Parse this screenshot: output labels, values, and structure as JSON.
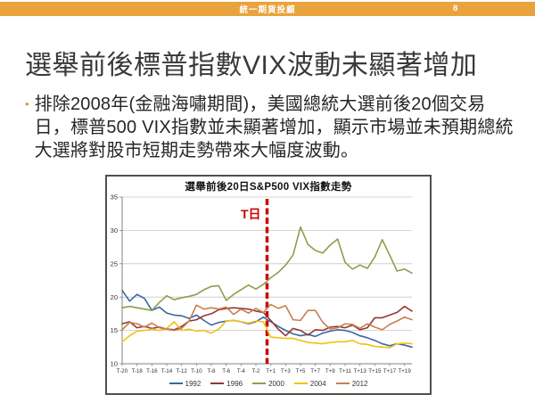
{
  "header": {
    "title": "統一期貨投顧",
    "page_number": "8",
    "bar_color": "#E9A33C"
  },
  "slide": {
    "title": "選舉前後標普指數VIX波動未顯著增加",
    "bullet_text": "排除2008年(金融海嘯期間)，美國總統大選前後20個交易日，標普500 VIX指數並未顯著增加，顯示市場並未預期總統大選將對股市短期走勢帶來大幅度波動。",
    "bullet_marker": "•",
    "accent_color": "#D09A42"
  },
  "chart_data": {
    "type": "line",
    "title": "選舉前後20日S&P500 VIX指數走勢",
    "ylim": [
      10,
      35
    ],
    "y_ticks": [
      10,
      15,
      20,
      25,
      30,
      35
    ],
    "grid": true,
    "legend_position": "bottom",
    "x_tick_labels": [
      "T-20",
      "T-18",
      "T-16",
      "T-14",
      "T-12",
      "T-10",
      "T-8",
      "T-6",
      "T-4",
      "T-2",
      "T+1",
      "T+3",
      "T+5",
      "T+7",
      "T+9",
      "T+11",
      "T+13",
      "T+15",
      "T+17",
      "T+19"
    ],
    "annotation": {
      "label": "T日",
      "color": "#CC0000",
      "description": "election-day dashed line between T-1 and T+1"
    },
    "axis_color": "#808080",
    "gridline_color": "#C8C8C8",
    "series": [
      {
        "name": "1992",
        "color": "#3A67A0",
        "values": [
          21.0,
          19.4,
          20.4,
          19.8,
          18.0,
          18.5,
          17.6,
          17.3,
          17.2,
          16.8,
          17.3,
          16.5,
          15.8,
          16.2,
          16.4,
          16.5,
          16.3,
          16.0,
          16.3,
          17.0,
          16.3,
          15.6,
          15.0,
          14.5,
          14.2,
          14.4,
          14.1,
          14.6,
          14.9,
          15.1,
          15.0,
          14.7,
          14.2,
          13.9,
          13.5,
          13.0,
          12.7,
          13.0,
          12.8,
          12.5
        ]
      },
      {
        "name": "1996",
        "color": "#953735",
        "values": [
          16.0,
          16.3,
          15.4,
          15.6,
          15.3,
          15.5,
          15.2,
          15.1,
          15.6,
          16.4,
          16.6,
          17.2,
          17.5,
          18.1,
          18.3,
          18.4,
          18.3,
          18.2,
          17.9,
          17.7,
          16.5,
          15.2,
          14.2,
          15.3,
          15.0,
          14.3,
          15.1,
          15.0,
          15.5,
          15.6,
          15.4,
          15.8,
          15.1,
          15.4,
          16.9,
          16.9,
          17.3,
          17.7,
          18.6,
          17.9
        ]
      },
      {
        "name": "2000",
        "color": "#89A04E",
        "values": [
          18.4,
          18.6,
          18.4,
          18.2,
          18.0,
          19.2,
          20.2,
          19.6,
          19.9,
          20.1,
          20.4,
          21.1,
          21.6,
          21.7,
          19.5,
          20.4,
          21.1,
          21.8,
          21.2,
          21.9,
          22.9,
          23.7,
          24.8,
          26.3,
          30.5,
          27.9,
          27.0,
          26.6,
          27.8,
          28.7,
          25.2,
          24.2,
          24.8,
          24.3,
          26.0,
          28.6,
          26.3,
          23.9,
          24.2,
          23.6
        ]
      },
      {
        "name": "2004",
        "color": "#F2C114",
        "values": [
          13.3,
          14.2,
          14.9,
          15.0,
          15.2,
          15.0,
          15.3,
          16.3,
          15.0,
          15.2,
          14.9,
          15.0,
          14.6,
          15.2,
          16.4,
          16.5,
          16.3,
          16.1,
          16.4,
          16.3,
          14.0,
          13.9,
          13.8,
          13.8,
          13.5,
          13.2,
          13.1,
          13.0,
          13.2,
          13.3,
          13.3,
          13.5,
          13.0,
          12.9,
          12.6,
          12.5,
          12.4,
          13.0,
          13.1,
          13.0
        ]
      },
      {
        "name": "2012",
        "color": "#C97E4F",
        "values": [
          15.1,
          16.2,
          16.0,
          15.5,
          16.1,
          15.4,
          15.2,
          15.0,
          15.3,
          16.4,
          18.8,
          18.2,
          18.4,
          18.2,
          18.5,
          17.4,
          18.2,
          17.6,
          18.3,
          17.7,
          18.9,
          18.3,
          18.7,
          16.6,
          16.5,
          18.0,
          18.0,
          16.2,
          15.2,
          15.4,
          16.0,
          15.9,
          15.3,
          16.0,
          15.5,
          15.1,
          15.9,
          16.4,
          17.0,
          16.6
        ]
      }
    ]
  }
}
